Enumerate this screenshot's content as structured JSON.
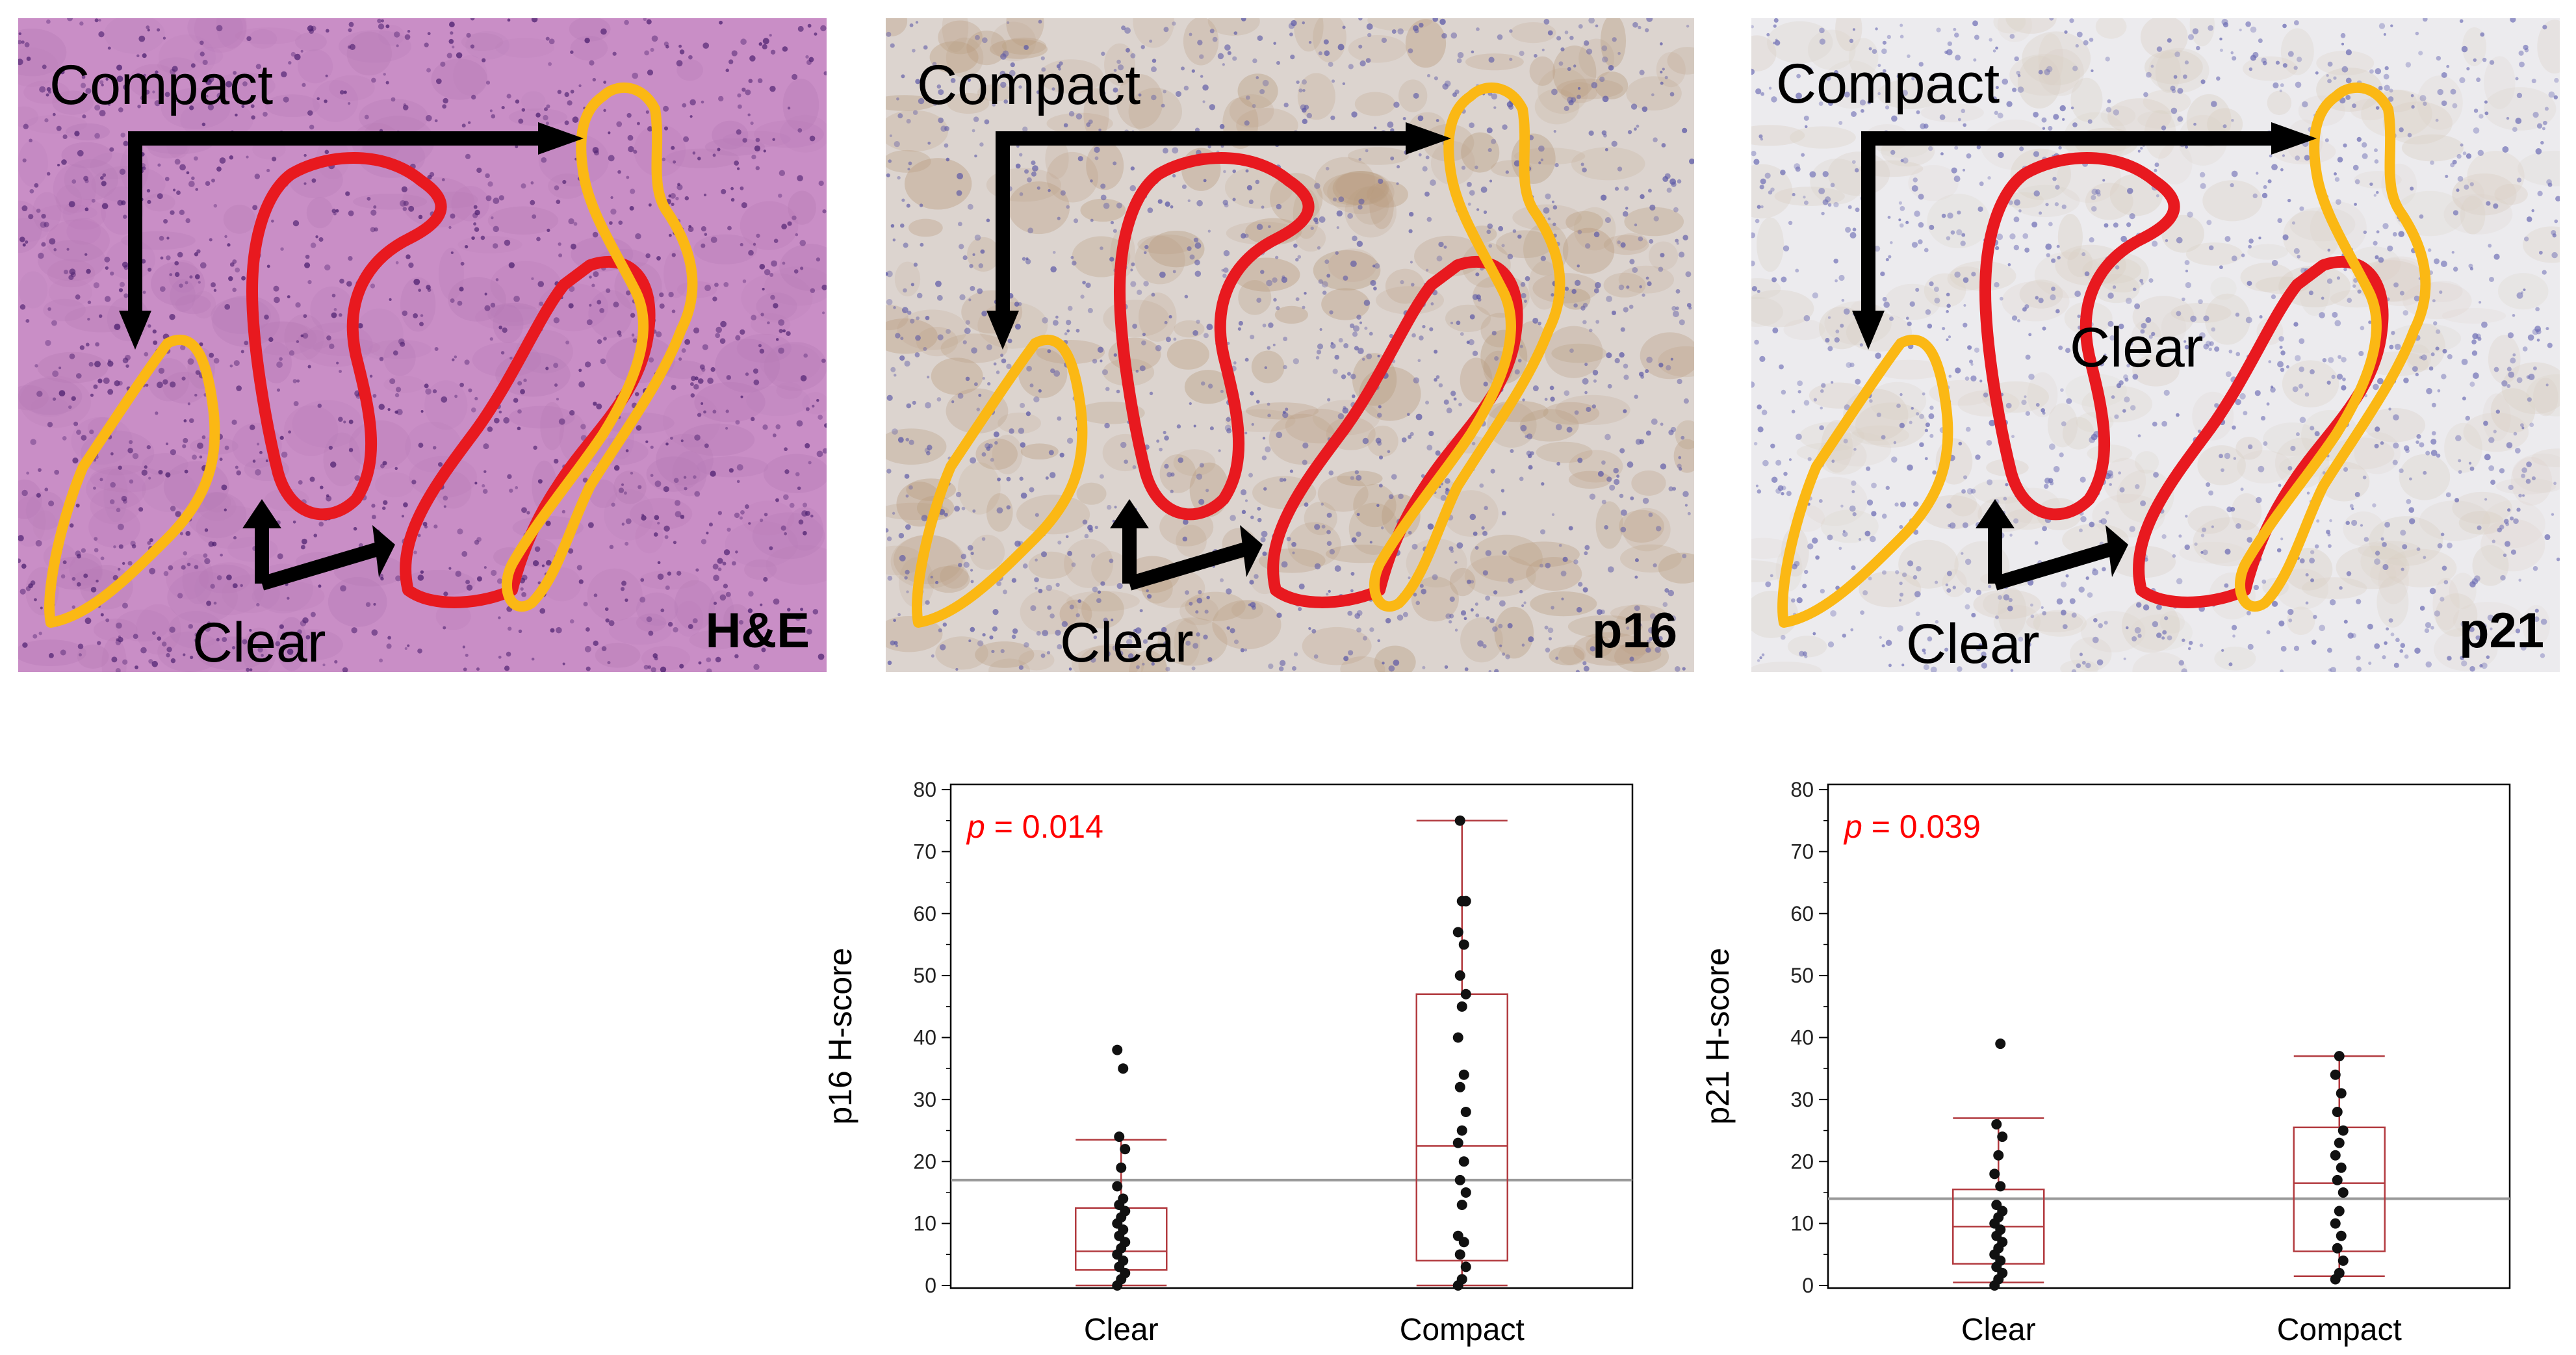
{
  "panels": [
    {
      "stain": "H&E",
      "compact_label": "Compact",
      "clear_label": "Clear",
      "inner_clear_label": "",
      "bg": "#c98ec6",
      "bg2": "#b77bb6",
      "nucleus": "#4a1e6e"
    },
    {
      "stain": "p16",
      "compact_label": "Compact",
      "clear_label": "Clear",
      "inner_clear_label": "",
      "bg": "#dcd4cf",
      "bg2": "#b89a7e",
      "nucleus": "#5b58a6"
    },
    {
      "stain": "p21",
      "compact_label": "Compact",
      "clear_label": "Clear",
      "inner_clear_label": "Clear",
      "bg": "#ecebee",
      "bg2": "#d9cfc4",
      "nucleus": "#6c6cb4"
    }
  ],
  "colors": {
    "clear_outline": "#e8191f",
    "compact_outline": "#fbb814",
    "arrow": "#000000",
    "box": "#b23a3f",
    "pvalue": "#ff0000",
    "refline": "#9a9a9a"
  },
  "chart_data": [
    {
      "type": "box",
      "ylabel": "p16 H-score",
      "categories": [
        "Clear",
        "Compact"
      ],
      "ylim": [
        0,
        80
      ],
      "yticks": [
        0,
        10,
        20,
        30,
        40,
        50,
        60,
        70,
        80
      ],
      "annotation": {
        "prefix": "p",
        "text": " = 0.014"
      },
      "reference_line": 17,
      "boxes": [
        {
          "category": "Clear",
          "whisker_low": 0,
          "q1": 2.5,
          "median": 5.5,
          "q3": 12.5,
          "whisker_high": 23.5
        },
        {
          "category": "Compact",
          "whisker_low": 0,
          "q1": 4,
          "median": 22.5,
          "q3": 47,
          "whisker_high": 75
        }
      ],
      "points": {
        "Clear": [
          0,
          1,
          2,
          3,
          4,
          5,
          6,
          7,
          8,
          9,
          10,
          11,
          12,
          13,
          14,
          16,
          19,
          22,
          24,
          35,
          38
        ],
        "Compact": [
          0,
          1,
          3,
          5,
          7,
          8,
          13,
          15,
          17,
          20,
          23,
          25,
          28,
          32,
          34,
          40,
          45,
          47,
          50,
          55,
          57,
          62,
          62,
          75
        ]
      }
    },
    {
      "type": "box",
      "ylabel": "p21 H-score",
      "categories": [
        "Clear",
        "Compact"
      ],
      "ylim": [
        0,
        80
      ],
      "yticks": [
        0,
        10,
        20,
        30,
        40,
        50,
        60,
        70,
        80
      ],
      "annotation": {
        "prefix": "p",
        "text": " = 0.039"
      },
      "reference_line": 14,
      "boxes": [
        {
          "category": "Clear",
          "whisker_low": 0.5,
          "q1": 3.5,
          "median": 9.5,
          "q3": 15.5,
          "whisker_high": 27
        },
        {
          "category": "Compact",
          "whisker_low": 1.5,
          "q1": 5.5,
          "median": 16.5,
          "q3": 25.5,
          "whisker_high": 37
        }
      ],
      "points": {
        "Clear": [
          0,
          1,
          2,
          3,
          4,
          5,
          6,
          7,
          8,
          9,
          10,
          11,
          12,
          13,
          16,
          18,
          21,
          24,
          26,
          39
        ],
        "Compact": [
          1,
          2,
          4,
          6,
          8,
          10,
          12,
          15,
          17,
          19,
          21,
          23,
          25,
          28,
          31,
          34,
          37
        ]
      }
    }
  ]
}
